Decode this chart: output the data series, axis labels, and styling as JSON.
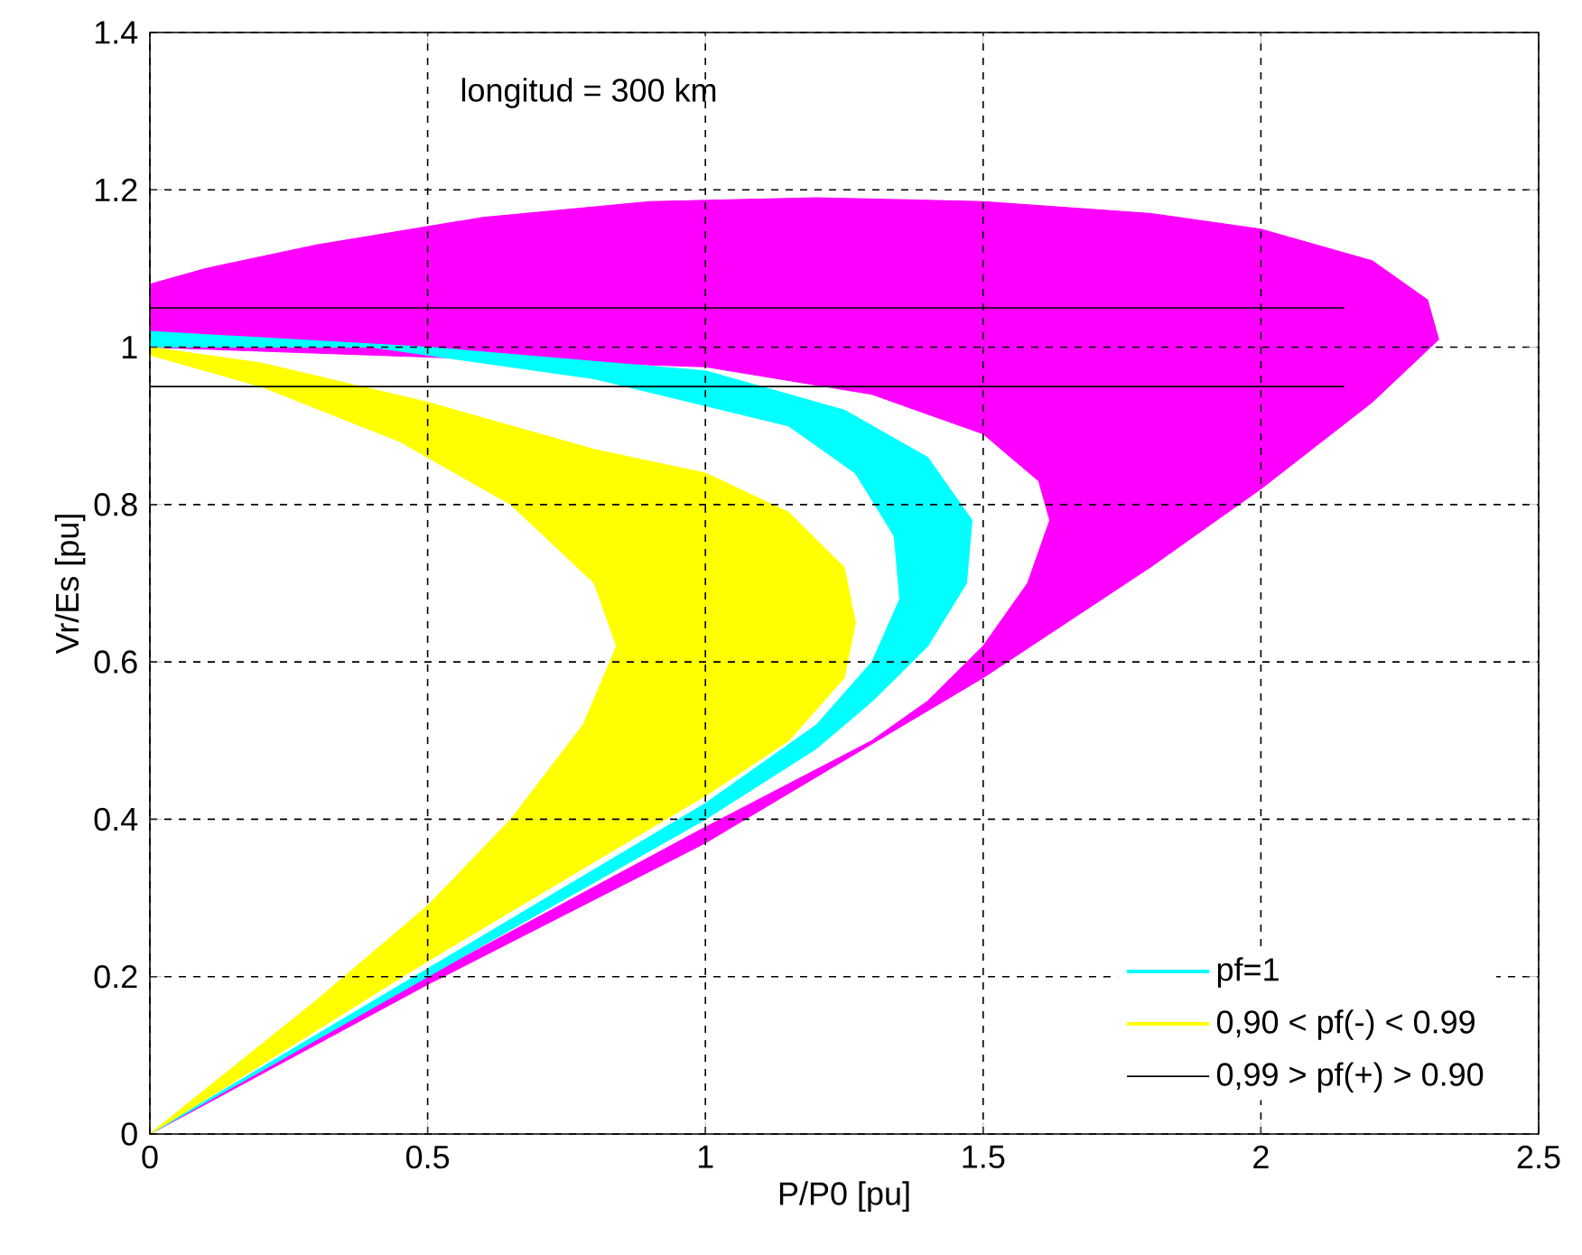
{
  "chart_data": {
    "type": "area",
    "xlabel": "P/P0 [pu]",
    "ylabel": "Vr/Es [pu]",
    "annotations": [
      "longitud = 300 km"
    ],
    "xlim": [
      0,
      2.5
    ],
    "ylim": [
      0,
      1.4
    ],
    "xticks": [
      0,
      0.5,
      1,
      1.5,
      2,
      2.5
    ],
    "yticks": [
      0,
      0.2,
      0.4,
      0.6,
      0.8,
      1,
      1.2,
      1.4
    ],
    "grid": true,
    "legend": "bottom right",
    "series": [
      {
        "color": "#ff00ff",
        "x": [
          0,
          0.5,
          1,
          1.5,
          1.8,
          2,
          2.2,
          2.32,
          2.3,
          2.2,
          2,
          1.8,
          1.5,
          1.2,
          0.9,
          0.6,
          0.3,
          0.1,
          0,
          0,
          0.5,
          1.0,
          1.3,
          1.5,
          1.6,
          1.62,
          1.58,
          1.5,
          1.4,
          1.3,
          1.0,
          0.5,
          0
        ],
        "values": [
          0,
          0.19,
          0.37,
          0.58,
          0.72,
          0.82,
          0.93,
          1.01,
          1.06,
          1.11,
          1.15,
          1.17,
          1.185,
          1.19,
          1.185,
          1.165,
          1.13,
          1.1,
          1.08,
          1.0,
          null,
          0.975,
          0.94,
          0.89,
          0.83,
          0.78,
          0.7,
          0.62,
          0.55,
          0.5,
          0.39,
          0.2,
          0
        ]
      },
      {
        "name": "pf=1",
        "color": "#00ffff",
        "x": [
          0,
          0.5,
          1.0,
          1.25,
          1.4,
          1.48,
          1.47,
          1.4,
          1.3,
          1.2,
          1.0,
          0.5,
          0,
          0.5,
          1.0,
          1.2,
          1.3,
          1.35,
          1.34,
          1.27,
          1.15,
          0.8,
          0.4,
          0
        ],
        "values": [
          1.02,
          1.0,
          0.97,
          0.92,
          0.86,
          0.78,
          0.7,
          0.62,
          0.55,
          0.49,
          0.4,
          0.2,
          0,
          0.21,
          0.42,
          0.52,
          0.6,
          0.68,
          0.76,
          0.84,
          0.9,
          0.96,
          1.0,
          1.0
        ]
      },
      {
        "name": "0,90 < pf(-) < 0.99",
        "color": "#ffff00",
        "x": [
          0,
          0.2,
          0.5,
          0.8,
          1.0,
          1.15,
          1.25,
          1.27,
          1.25,
          1.15,
          1.0,
          0.5,
          0,
          0.3,
          0.5,
          0.65,
          0.78,
          0.84,
          0.8,
          0.65,
          0.45,
          0.2,
          0
        ],
        "values": [
          1.0,
          0.98,
          0.93,
          0.87,
          0.84,
          0.79,
          0.72,
          0.65,
          0.58,
          0.5,
          0.43,
          0.22,
          0,
          0.17,
          0.29,
          0.4,
          0.52,
          0.62,
          0.7,
          0.8,
          0.88,
          0.95,
          0.99
        ]
      },
      {
        "type": "line",
        "name": "0,99 > pf(+) > 0.90",
        "color": "#000000",
        "x": [
          0,
          2.15
        ],
        "values": [
          1.05,
          1.05
        ]
      },
      {
        "type": "line",
        "color": "#000000",
        "x": [
          0,
          2.15
        ],
        "values": [
          0.95,
          0.95
        ]
      }
    ]
  }
}
